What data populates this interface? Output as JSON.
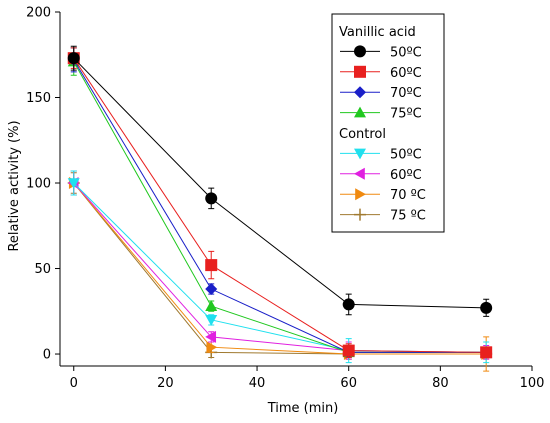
{
  "chart_data": {
    "type": "line",
    "xlabel": "Time (min)",
    "ylabel": "Relative activity (%)",
    "xlim": [
      -3,
      100
    ],
    "ylim": [
      -7,
      200
    ],
    "xticks": [
      0,
      20,
      40,
      60,
      80,
      100
    ],
    "yticks": [
      0,
      50,
      100,
      150,
      200
    ],
    "grid": false,
    "legend_position": "top-right",
    "legend_groups": [
      {
        "title": "Vanillic acid",
        "series": [
          0,
          1,
          2,
          3
        ]
      },
      {
        "title": "Control",
        "series": [
          4,
          5,
          6,
          7
        ]
      }
    ],
    "x": [
      0,
      30,
      60,
      90
    ],
    "series": [
      {
        "name": "50ºC",
        "group": "Vanillic acid",
        "color": "#000000",
        "marker": "circle",
        "values": [
          173,
          91,
          29,
          27
        ],
        "errors": [
          7,
          6,
          6,
          5
        ]
      },
      {
        "name": "60ºC",
        "group": "Vanillic acid",
        "color": "#e8201f",
        "marker": "square",
        "values": [
          173,
          52,
          2,
          1
        ],
        "errors": [
          6,
          8,
          4,
          3
        ]
      },
      {
        "name": "70ºC",
        "group": "Vanillic acid",
        "color": "#1a1fc8",
        "marker": "diamond",
        "values": [
          172,
          38,
          1,
          1
        ],
        "errors": [
          7,
          3,
          3,
          3
        ]
      },
      {
        "name": "75ºC",
        "group": "Vanillic acid",
        "color": "#20c81f",
        "marker": "triangle-up",
        "values": [
          171,
          28,
          1,
          1
        ],
        "errors": [
          8,
          3,
          3,
          3
        ]
      },
      {
        "name": "50ºC",
        "group": "Control",
        "color": "#20e0ee",
        "marker": "triangle-down",
        "values": [
          100,
          20,
          2,
          1
        ],
        "errors": [
          7,
          3,
          7,
          6
        ]
      },
      {
        "name": "60ºC",
        "group": "Control",
        "color": "#e020e0",
        "marker": "triangle-left",
        "values": [
          100,
          10,
          2,
          1
        ],
        "errors": [
          7,
          3,
          5,
          4
        ]
      },
      {
        "name": "70 ºC",
        "group": "Control",
        "color": "#f08a10",
        "marker": "triangle-right",
        "values": [
          100,
          4,
          0,
          0
        ],
        "errors": [
          7,
          3,
          3,
          10
        ]
      },
      {
        "name": "75 ºC",
        "group": "Control",
        "color": "#a07a30",
        "marker": "plus",
        "values": [
          100,
          1,
          0,
          0
        ],
        "errors": [
          6,
          3,
          3,
          3
        ]
      }
    ]
  }
}
